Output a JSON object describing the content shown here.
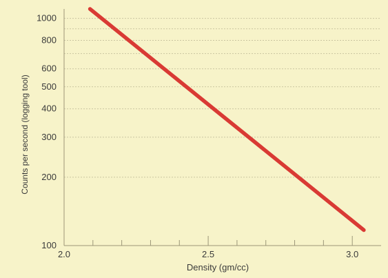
{
  "colors": {
    "background": "#f7f3c9",
    "gridline": "#c9c4a0",
    "axis": "#9c9678",
    "line": "#d93a34"
  },
  "chart_data": {
    "type": "line",
    "title": "",
    "xlabel": "Density (gm/cc)",
    "ylabel": "Counts per second (logging tool)",
    "xlim": [
      2.0,
      3.1
    ],
    "ylim": [
      100,
      1100
    ],
    "yscale": "log",
    "grid": true,
    "x_ticks": [
      2.0,
      2.5,
      3.0
    ],
    "x_tick_labels": [
      "2.0",
      "2.5",
      "3.0"
    ],
    "x_minor_ticks": [
      2.1,
      2.2,
      2.3,
      2.4,
      2.6,
      2.7,
      2.8,
      2.9
    ],
    "y_ticks": [
      100,
      200,
      300,
      400,
      500,
      600,
      800,
      1000
    ],
    "y_tick_labels": [
      "100",
      "200",
      "300",
      "400",
      "500",
      "600",
      "800",
      "1000"
    ],
    "y_grid": [
      200,
      300,
      400,
      500,
      600,
      700,
      800,
      900,
      1000
    ],
    "series": [
      {
        "name": "",
        "x": [
          2.09,
          3.04
        ],
        "y": [
          1100,
          117
        ]
      }
    ]
  }
}
